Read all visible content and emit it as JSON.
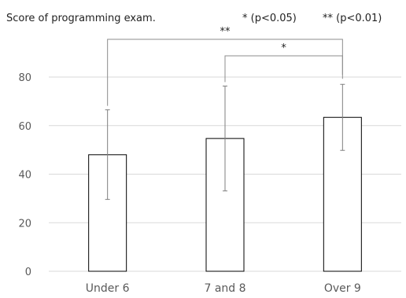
{
  "chart_data": {
    "type": "bar",
    "title": "Score of programming exam.",
    "significance_legend": [
      "* (p<0.05)",
      "** (p<0.01)"
    ],
    "categories": [
      "Under 6",
      "7 and 8",
      "Over 9"
    ],
    "values": [
      48,
      54.7,
      63.4
    ],
    "error_upper": [
      66.5,
      76.3,
      77
    ],
    "error_lower": [
      29.6,
      33.1,
      49.8
    ],
    "ylim": [
      0,
      80
    ],
    "yticks": [
      0,
      20,
      40,
      60,
      80
    ],
    "grid": true,
    "brackets": [
      {
        "from": 0,
        "to": 2,
        "label": "**"
      },
      {
        "from": 1,
        "to": 2,
        "label": "*"
      }
    ],
    "colors": {
      "bar_fill": "#ffffff",
      "bar_stroke": "#000000",
      "grid": "#d9d9d9",
      "error_bar": "#7f7f7f"
    }
  }
}
